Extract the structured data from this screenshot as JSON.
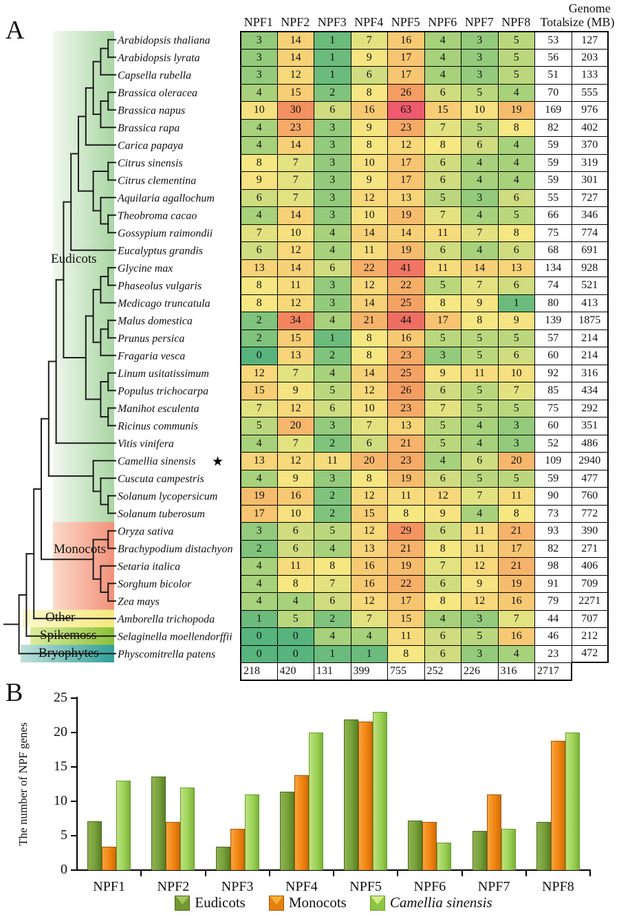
{
  "panels": {
    "a_label": "A",
    "b_label": "B"
  },
  "heatmap": {
    "column_headers": [
      "NPF1",
      "NPF2",
      "NPF3",
      "NPF4",
      "NPF5",
      "NPF6",
      "NPF7",
      "NPF8"
    ],
    "total_header": "Total",
    "genome_header_line1": "Genome",
    "genome_header_line2": "size (MB)",
    "star_icon": "★",
    "species": [
      {
        "name": "Arabidopsis thaliana",
        "values": [
          3,
          14,
          1,
          7,
          16,
          4,
          3,
          5
        ],
        "total": 53,
        "genome": 127
      },
      {
        "name": "Arabidopsis lyrata",
        "values": [
          3,
          14,
          1,
          9,
          17,
          4,
          3,
          5
        ],
        "total": 56,
        "genome": 203
      },
      {
        "name": "Capsella rubella",
        "values": [
          3,
          12,
          1,
          6,
          17,
          4,
          3,
          5
        ],
        "total": 51,
        "genome": 133
      },
      {
        "name": "Brassica oleracea",
        "values": [
          4,
          15,
          2,
          8,
          26,
          6,
          5,
          4
        ],
        "total": 70,
        "genome": 555
      },
      {
        "name": "Brassica napus",
        "values": [
          10,
          30,
          6,
          16,
          63,
          15,
          10,
          19
        ],
        "total": 169,
        "genome": 976
      },
      {
        "name": "Brassica rapa",
        "values": [
          4,
          23,
          3,
          9,
          23,
          7,
          5,
          8
        ],
        "total": 82,
        "genome": 402
      },
      {
        "name": "Carica papaya",
        "values": [
          4,
          14,
          3,
          8,
          12,
          8,
          6,
          4
        ],
        "total": 59,
        "genome": 370
      },
      {
        "name": "Citrus sinensis",
        "values": [
          8,
          7,
          3,
          10,
          17,
          6,
          4,
          4
        ],
        "total": 59,
        "genome": 319
      },
      {
        "name": "Citrus clementina",
        "values": [
          9,
          7,
          3,
          9,
          17,
          6,
          4,
          4
        ],
        "total": 59,
        "genome": 301
      },
      {
        "name": "Aquilaria agallochum",
        "values": [
          6,
          7,
          3,
          12,
          13,
          5,
          3,
          6
        ],
        "total": 55,
        "genome": 727
      },
      {
        "name": "Theobroma cacao",
        "values": [
          4,
          14,
          3,
          10,
          19,
          7,
          4,
          5
        ],
        "total": 66,
        "genome": 346
      },
      {
        "name": "Gossypium raimondii",
        "values": [
          7,
          10,
          4,
          14,
          14,
          11,
          7,
          8
        ],
        "total": 75,
        "genome": 774
      },
      {
        "name": "Eucalyptus grandis",
        "values": [
          6,
          12,
          4,
          11,
          19,
          6,
          4,
          6
        ],
        "total": 68,
        "genome": 691
      },
      {
        "name": "Glycine max",
        "values": [
          13,
          14,
          6,
          22,
          41,
          11,
          14,
          13
        ],
        "total": 134,
        "genome": 928
      },
      {
        "name": "Phaseolus vulgaris",
        "values": [
          8,
          11,
          3,
          12,
          22,
          5,
          7,
          6
        ],
        "total": 74,
        "genome": 521
      },
      {
        "name": "Medicago truncatula",
        "values": [
          8,
          12,
          3,
          14,
          25,
          8,
          9,
          1
        ],
        "total": 80,
        "genome": 413
      },
      {
        "name": "Malus domestica",
        "values": [
          2,
          34,
          4,
          21,
          44,
          17,
          8,
          9
        ],
        "total": 139,
        "genome": 1875
      },
      {
        "name": "Prunus persica",
        "values": [
          2,
          15,
          1,
          8,
          16,
          5,
          5,
          5
        ],
        "total": 57,
        "genome": 214
      },
      {
        "name": "Fragaria vesca",
        "values": [
          0,
          13,
          2,
          8,
          23,
          3,
          5,
          6
        ],
        "total": 60,
        "genome": 214
      },
      {
        "name": "Linum usitatissimum",
        "values": [
          12,
          7,
          4,
          14,
          25,
          9,
          11,
          10
        ],
        "total": 92,
        "genome": 316
      },
      {
        "name": "Populus trichocarpa",
        "values": [
          15,
          9,
          5,
          12,
          26,
          6,
          5,
          7
        ],
        "total": 85,
        "genome": 434
      },
      {
        "name": "Manihot esculenta",
        "values": [
          7,
          12,
          6,
          10,
          23,
          7,
          5,
          5
        ],
        "total": 75,
        "genome": 292
      },
      {
        "name": "Ricinus communis",
        "values": [
          5,
          20,
          3,
          7,
          13,
          5,
          4,
          3
        ],
        "total": 60,
        "genome": 351
      },
      {
        "name": "Vitis vinifera",
        "values": [
          4,
          7,
          2,
          6,
          21,
          5,
          4,
          3
        ],
        "total": 52,
        "genome": 486
      },
      {
        "name": "Camellia sinensis",
        "values": [
          13,
          12,
          11,
          20,
          23,
          4,
          6,
          20
        ],
        "total": 109,
        "genome": 2940,
        "starred": true
      },
      {
        "name": "Cuscuta campestris",
        "values": [
          4,
          9,
          3,
          8,
          19,
          6,
          5,
          5
        ],
        "total": 59,
        "genome": 477
      },
      {
        "name": "Solanum lycopersicum",
        "values": [
          19,
          16,
          2,
          12,
          11,
          12,
          7,
          11
        ],
        "total": 90,
        "genome": 760
      },
      {
        "name": "Solanum tuberosum",
        "values": [
          17,
          10,
          2,
          15,
          8,
          9,
          4,
          8
        ],
        "total": 73,
        "genome": 772
      },
      {
        "name": "Oryza sativa",
        "values": [
          3,
          6,
          5,
          12,
          29,
          6,
          11,
          21
        ],
        "total": 93,
        "genome": 390
      },
      {
        "name": "Brachypodium distachyon",
        "values": [
          2,
          6,
          4,
          13,
          21,
          8,
          11,
          17
        ],
        "total": 82,
        "genome": 271
      },
      {
        "name": "Setaria italica",
        "values": [
          4,
          11,
          8,
          16,
          19,
          7,
          12,
          21
        ],
        "total": 98,
        "genome": 406
      },
      {
        "name": "Sorghum bicolor",
        "values": [
          4,
          8,
          7,
          16,
          22,
          6,
          9,
          19
        ],
        "total": 91,
        "genome": 709
      },
      {
        "name": "Zea mays",
        "values": [
          4,
          4,
          6,
          12,
          17,
          8,
          12,
          16
        ],
        "total": 79,
        "genome": 2271
      },
      {
        "name": "Amborella trichopoda",
        "values": [
          1,
          5,
          2,
          7,
          15,
          4,
          3,
          7
        ],
        "total": 44,
        "genome": 707
      },
      {
        "name": "Selaginella moellendorffii",
        "values": [
          0,
          0,
          4,
          4,
          11,
          6,
          5,
          16
        ],
        "total": 46,
        "genome": 212
      },
      {
        "name": "Physcomitrella patens",
        "values": [
          0,
          0,
          1,
          1,
          8,
          6,
          3,
          4
        ],
        "total": 23,
        "genome": 472
      }
    ],
    "column_totals": [
      218,
      420,
      131,
      399,
      755,
      252,
      226,
      316
    ],
    "grand_total": 2717,
    "color_scale": {
      "stops": [
        [
          0,
          "#57b47c"
        ],
        [
          4,
          "#a7d17b"
        ],
        [
          8,
          "#f6e783"
        ],
        [
          16,
          "#f7c973"
        ],
        [
          26,
          "#f49d62"
        ],
        [
          34,
          "#f2855f"
        ],
        [
          44,
          "#ef6e64"
        ],
        [
          63,
          "#ee5a6e"
        ]
      ]
    }
  },
  "tree": {
    "groups": [
      {
        "label": "Eudicots",
        "species_range": [
          0,
          27
        ],
        "color_start": "#f1f8ee",
        "color_end": "#a9d6a3"
      },
      {
        "label": "Monocots",
        "species_range": [
          28,
          32
        ],
        "color_start": "#fbd9c9",
        "color_end": "#f2917a"
      },
      {
        "label": "Other",
        "species_range": [
          33,
          33
        ],
        "color_start": "#fdf7cf",
        "color_end": "#f6e87d"
      },
      {
        "label": "Spikemoss",
        "species_range": [
          34,
          34
        ],
        "color_start": "#dcec9c",
        "color_end": "#8cc03b"
      },
      {
        "label": "Bryophytes",
        "species_range": [
          35,
          35
        ],
        "color_start": "#bfe0da",
        "color_end": "#2fa099"
      }
    ],
    "topology": [
      [
        [
          [
            [
              [
                [
                  [
                    [
                      [
                        [
                          [
                            "Arabidopsis thaliana",
                            "Arabidopsis lyrata"
                          ],
                          "Capsella rubella"
                        ],
                        [
                          [
                            "Brassica oleracea",
                            "Brassica napus"
                          ],
                          "Brassica rapa"
                        ]
                      ],
                      "Carica papaya"
                    ],
                    [
                      [
                        "Citrus sinensis",
                        "Citrus clementina"
                      ],
                      [
                        "Aquilaria agallochum",
                        [
                          "Theobroma cacao",
                          "Gossypium raimondii"
                        ]
                      ]
                    ]
                  ],
                  "Eucalyptus grandis"
                ],
                [
                  [
                    [
                      [
                        "Glycine max",
                        "Phaseolus vulgaris"
                      ],
                      "Medicago truncatula"
                    ],
                    [
                      [
                        "Malus domestica",
                        "Prunus persica"
                      ],
                      "Fragaria vesca"
                    ]
                  ],
                  [
                    [
                      "Linum usitatissimum",
                      "Populus trichocarpa"
                    ],
                    [
                      "Manihot esculenta",
                      "Ricinus communis"
                    ]
                  ]
                ]
              ],
              "Vitis vinifera"
            ],
            [
              "Camellia sinensis",
              [
                "Cuscuta campestris",
                [
                  "Solanum lycopersicum",
                  "Solanum tuberosum"
                ]
              ]
            ]
          ],
          [
            [
              "Oryza sativa",
              "Brachypodium distachyon"
            ],
            [
              "Setaria italica",
              [
                "Sorghum bicolor",
                "Zea mays"
              ]
            ]
          ]
        ],
        "Amborella trichopoda"
      ],
      "Selaginella moellendorffii"
    ],
    "outgroup": "Physcomitrella patens"
  },
  "chart_data": {
    "type": "bar",
    "title": "",
    "categories": [
      "NPF1",
      "NPF2",
      "NPF3",
      "NPF4",
      "NPF5",
      "NPF6",
      "NPF7",
      "NPF8"
    ],
    "series": [
      {
        "name": "Eudicots",
        "italic": false,
        "values": [
          7.14,
          13.57,
          3.36,
          11.36,
          21.89,
          7.18,
          5.71,
          6.96
        ],
        "colors": {
          "light": "#8fb251",
          "base": "#76a039",
          "dark": "#5a7f26",
          "border": "#4c6b1e",
          "swatch_light": "#a6c162",
          "swatch_base": "#71992f"
        }
      },
      {
        "name": "Monocots",
        "italic": false,
        "values": [
          3.4,
          7.0,
          6.0,
          13.8,
          21.6,
          7.0,
          11.0,
          18.8
        ],
        "colors": {
          "light": "#f8a33f",
          "base": "#f18510",
          "dark": "#cf6c0a",
          "border": "#a55707",
          "swatch_light": "#f7b034",
          "swatch_base": "#e6800f"
        }
      },
      {
        "name": "Camellia sinensis",
        "italic": true,
        "values": [
          13,
          12,
          11,
          20,
          23,
          4,
          6,
          20
        ],
        "colors": {
          "light": "#bfe182",
          "base": "#9bd356",
          "dark": "#7cb13a",
          "border": "#699d2e",
          "swatch_light": "#d2ea87",
          "swatch_base": "#8cc63f"
        }
      }
    ],
    "xlabel": "",
    "ylabel": "The number of NPF genes",
    "ylim": [
      0,
      25
    ],
    "yticks": [
      0,
      5,
      10,
      15,
      20,
      25
    ],
    "grid": false,
    "legend_position": "bottom"
  }
}
